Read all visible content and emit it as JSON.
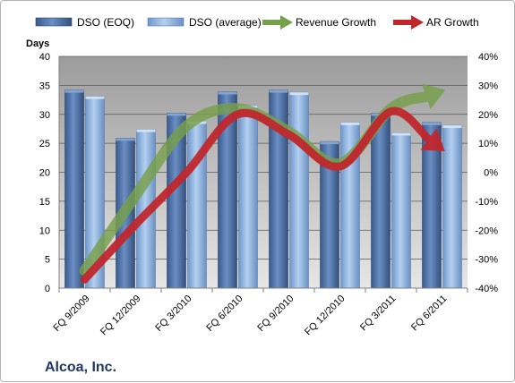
{
  "chart_data": {
    "type": "bar",
    "company": "Alcoa, Inc.",
    "ylabel": "Days",
    "ylim": [
      0,
      40
    ],
    "y2lim": [
      -40,
      40
    ],
    "y_ticks": [
      "0",
      "5",
      "10",
      "15",
      "20",
      "25",
      "30",
      "35",
      "40"
    ],
    "y2_ticks": [
      "-40%",
      "-30%",
      "-20%",
      "-10%",
      "0%",
      "10%",
      "20%",
      "30%",
      "40%"
    ],
    "categories": [
      "FQ 9/2009",
      "FQ 12/2009",
      "FQ 3/2010",
      "FQ 6/2010",
      "FQ 9/2010",
      "FQ 12/2010",
      "FQ 3/2011",
      "FQ 6/2011"
    ],
    "grid": true,
    "legend_position": "top",
    "series": [
      {
        "name": "DSO (EOQ)",
        "kind": "bar",
        "axis": "left",
        "color": "#4a6fa5",
        "values": [
          34.2,
          25.9,
          30.2,
          33.9,
          34.2,
          25.3,
          30.2,
          28.6
        ]
      },
      {
        "name": "DSO (average)",
        "kind": "bar",
        "axis": "left",
        "color": "#8db3e2",
        "values": [
          33.1,
          27.4,
          28.8,
          31.5,
          33.8,
          28.6,
          26.8,
          28.1
        ]
      },
      {
        "name": "Revenue Growth",
        "kind": "arrow",
        "axis": "right",
        "color": "#77a04a",
        "values": [
          -34,
          -8,
          16,
          22,
          14,
          3,
          22,
          28
        ]
      },
      {
        "name": "AR Growth",
        "kind": "arrow",
        "axis": "right",
        "color": "#c0272d",
        "values": [
          -37,
          -18,
          0,
          20,
          13,
          2,
          21,
          8
        ]
      }
    ]
  }
}
